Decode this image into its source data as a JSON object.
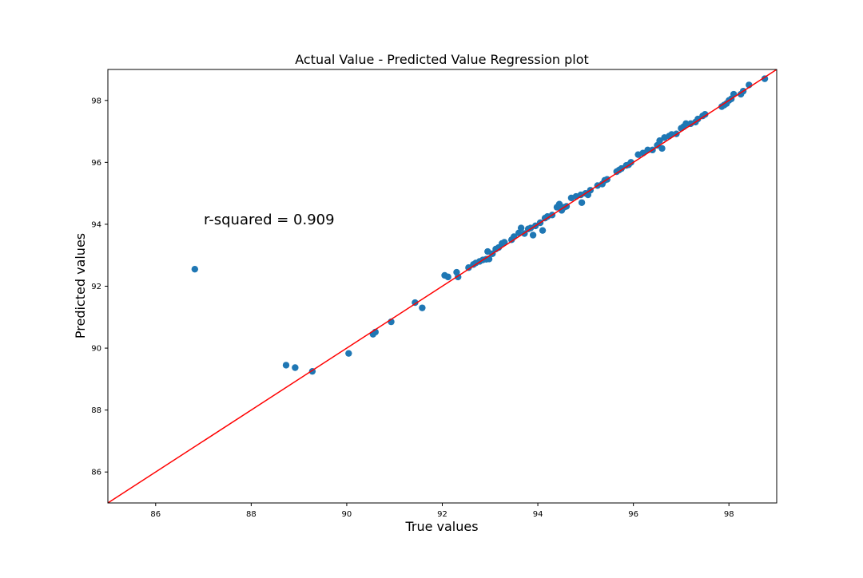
{
  "chart_data": {
    "type": "scatter",
    "title": "Actual Value - Predicted Value Regression plot",
    "xlabel": "True values",
    "ylabel": "Predicted values",
    "xlim": [
      85,
      99
    ],
    "ylim": [
      85,
      99
    ],
    "xticks": [
      86,
      88,
      90,
      92,
      94,
      96,
      98
    ],
    "yticks": [
      86,
      88,
      90,
      92,
      94,
      96,
      98
    ],
    "annotation": "r-squared = 0.909",
    "grid": false,
    "legend": "none",
    "colors": {
      "points": "#1f77b4",
      "fit_line": "#ff0000"
    },
    "fit_line": {
      "x": [
        85,
        99
      ],
      "y": [
        85,
        99
      ]
    },
    "points": {
      "x": [
        86.82,
        88.73,
        88.92,
        89.28,
        90.04,
        90.55,
        90.6,
        90.93,
        91.43,
        91.58,
        92.05,
        92.12,
        92.3,
        92.33,
        92.55,
        92.65,
        92.7,
        92.78,
        92.85,
        92.92,
        92.95,
        92.98,
        93.05,
        93.12,
        93.18,
        93.25,
        93.3,
        93.45,
        93.5,
        93.6,
        93.65,
        93.72,
        93.8,
        93.85,
        93.9,
        93.95,
        94.05,
        94.1,
        94.15,
        94.2,
        94.3,
        94.4,
        94.45,
        94.5,
        94.55,
        94.6,
        94.7,
        94.8,
        94.9,
        94.92,
        95.0,
        95.05,
        95.1,
        95.25,
        95.35,
        95.4,
        95.45,
        95.65,
        95.7,
        95.75,
        95.85,
        95.9,
        95.95,
        96.1,
        96.2,
        96.3,
        96.4,
        96.5,
        96.55,
        96.6,
        96.65,
        96.75,
        96.8,
        96.9,
        97.0,
        97.05,
        97.1,
        97.2,
        97.3,
        97.35,
        97.45,
        97.5,
        97.85,
        97.9,
        97.95,
        98.0,
        98.05,
        98.1,
        98.25,
        98.3,
        98.42,
        98.75
      ],
      "y": [
        92.55,
        89.45,
        89.37,
        89.25,
        89.83,
        90.45,
        90.52,
        90.85,
        91.47,
        91.3,
        92.35,
        92.3,
        92.45,
        92.3,
        92.6,
        92.7,
        92.75,
        92.8,
        92.85,
        92.87,
        93.12,
        92.88,
        93.05,
        93.2,
        93.25,
        93.38,
        93.42,
        93.5,
        93.6,
        93.72,
        93.88,
        93.7,
        93.85,
        93.88,
        93.65,
        93.95,
        94.05,
        93.8,
        94.2,
        94.25,
        94.3,
        94.55,
        94.65,
        94.45,
        94.55,
        94.58,
        94.85,
        94.9,
        94.95,
        94.7,
        95.0,
        94.95,
        95.1,
        95.25,
        95.3,
        95.42,
        95.45,
        95.7,
        95.75,
        95.8,
        95.9,
        95.92,
        96.0,
        96.25,
        96.3,
        96.4,
        96.4,
        96.55,
        96.7,
        96.45,
        96.8,
        96.85,
        96.9,
        96.92,
        97.1,
        97.15,
        97.25,
        97.25,
        97.3,
        97.4,
        97.5,
        97.55,
        97.8,
        97.85,
        97.9,
        98.0,
        98.05,
        98.2,
        98.2,
        98.3,
        98.5,
        98.7
      ]
    }
  }
}
